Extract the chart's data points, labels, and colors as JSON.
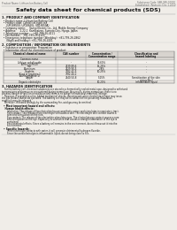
{
  "bg_color": "#f0ede8",
  "header_left": "Product Name: Lithium Ion Battery Cell",
  "header_right": "Substance Code: SBR-089-00010\nEstablished / Revision: Dec.1.2010",
  "title": "Safety data sheet for chemical products (SDS)",
  "section1_title": "1. PRODUCT AND COMPANY IDENTIFICATION",
  "section1_lines": [
    "  • Product name: Lithium Ion Battery Cell",
    "  • Product code: Cylindrical-type cell",
    "      (UR18650U, UR18650L, UR18650A)",
    "  • Company name:     Sanyo Electric Co., Ltd. Mobile Energy Company",
    "  • Address:     2-22-1  Kamikaizen, Sumoto-City, Hyogo, Japan",
    "  • Telephone number:     +81-799-26-4111",
    "  • Fax number:   +81-799-26-4120",
    "  • Emergency telephone number (Weekday): +81-799-26-2862",
    "      (Night and holiday): +81-799-26-4101"
  ],
  "section2_title": "2. COMPOSITION / INFORMATION ON INGREDIENTS",
  "section2_sub": "  • Substance or preparation: Preparation",
  "section2_sub2": "  • Information about the chemical nature of product:",
  "table_headers": [
    "Chemical chemical name",
    "CAS number",
    "Concentration /\nConcentration range",
    "Classification and\nhazard labeling"
  ],
  "table_col2": "Common name",
  "table_rows": [
    [
      "Lithium cobalt oxide\n(LiMn-Co-PrO2)",
      "-",
      "30-60%",
      "-"
    ],
    [
      "Iron",
      "7439-89-6",
      "15-25%",
      "-"
    ],
    [
      "Aluminum",
      "7429-90-5",
      "2-8%",
      "-"
    ],
    [
      "Graphite\n(Kind of graphite:1\nAl-Mn graphite:1)",
      "7782-42-5\n7782-44-2",
      "10-25%",
      "-"
    ],
    [
      "Copper",
      "7440-50-8",
      "5-15%",
      "Sensitization of the skin\ngroup No.2"
    ],
    [
      "Organic electrolyte",
      "-",
      "10-20%",
      "Inflammable liquid"
    ]
  ],
  "section3_title": "3. HAZARDS IDENTIFICATION",
  "section3_lines": [
    "    For the battery cell, chemical substances are stored in a hermetically sealed metal case, designed to withstand",
    "temperatures and pressures encountered during normal use. As a result, during normal use, there is no",
    "physical danger of ignition or explosion and there is no danger of hazardous materials leakage.",
    "    However, if exposed to a fire, added mechanical shocks, decomposed, when electrolyte release may issue,",
    "the gas release cannot be operated. The battery cell may be in contact of fire-poisoning. Hazardous",
    "materials may be released.",
    "    Moreover, if heated strongly by the surrounding fire, acid gas may be emitted."
  ],
  "section3_bullet1": "  • Most important hazard and effects:",
  "section3_human": "    Human health effects:",
  "section3_human_lines": [
    "        Inhalation: The release of the electrolyte has an anesthetic action and stimulates in respiratory tract.",
    "        Skin contact: The release of the electrolyte stimulates a skin. The electrolyte skin contact causes a",
    "        sore and stimulation on the skin.",
    "        Eye contact: The release of the electrolyte stimulates eyes. The electrolyte eye contact causes a sore",
    "        and stimulation on the eye. Especially, a substance that causes a strong inflammation of the eye is",
    "        contained.",
    "        Environmental effects: Since a battery cell remains in the environment, do not throw out it into the",
    "        environment."
  ],
  "section3_bullet2": "  • Specific hazards:",
  "section3_specific_lines": [
    "        If the electrolyte contacts with water, it will generate detrimental hydrogen fluoride.",
    "        Since the used electrolyte is inflammable liquid, do not bring close to fire."
  ]
}
